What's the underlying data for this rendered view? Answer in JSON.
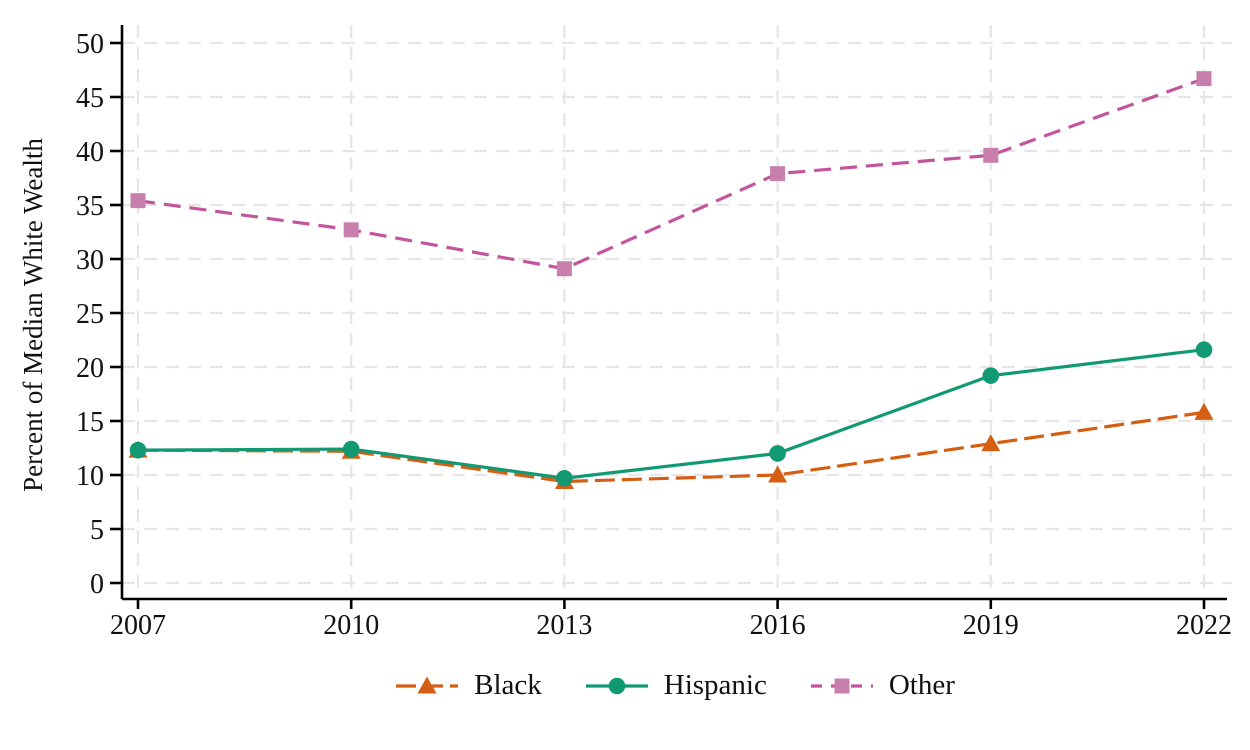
{
  "chart_data": {
    "type": "line",
    "title": "",
    "xlabel": "",
    "ylabel": "Percent of Median White Wealth",
    "x": [
      2007,
      2010,
      2013,
      2016,
      2019,
      2022
    ],
    "series": [
      {
        "name": "Black",
        "color": "#D55E13",
        "marker": "triangle",
        "line_style": "dashed",
        "dash": "20 7",
        "values": [
          12.3,
          12.2,
          9.4,
          10.0,
          12.9,
          15.8
        ]
      },
      {
        "name": "Hispanic",
        "color": "#119973",
        "marker": "circle",
        "line_style": "solid",
        "dash": "",
        "values": [
          12.3,
          12.4,
          9.7,
          12.0,
          19.2,
          21.6
        ]
      },
      {
        "name": "Other",
        "color": "#C2559D",
        "marker_color": "#C77FAD",
        "marker": "square",
        "line_style": "dashed",
        "dash": "17 9",
        "legend_dash": "11 9",
        "values": [
          35.4,
          32.7,
          29.1,
          37.9,
          39.6,
          46.7
        ]
      }
    ],
    "ylim": [
      0,
      50
    ],
    "yticks": [
      0,
      5,
      10,
      15,
      20,
      25,
      30,
      35,
      40,
      45,
      50
    ],
    "grid": true,
    "grid_color": "#e6e6e6",
    "axis_color": "#000000",
    "legend_position": "bottom"
  }
}
